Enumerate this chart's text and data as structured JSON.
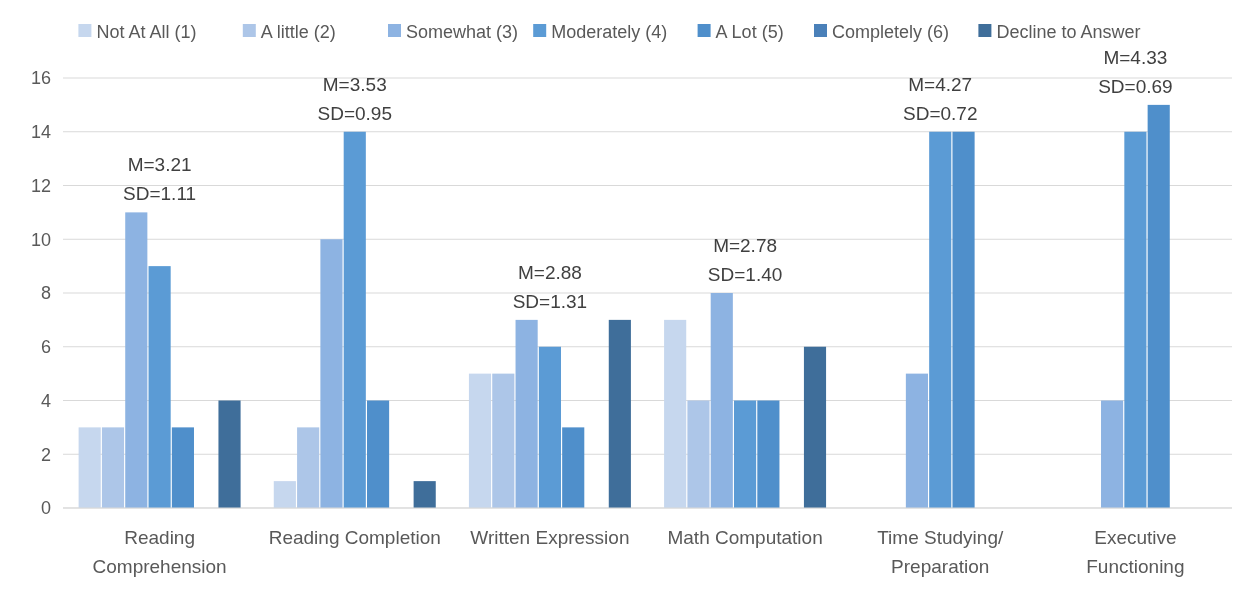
{
  "chart_data": {
    "type": "bar",
    "categories": [
      "Reading Comprehension",
      "Reading Completion",
      "Written Expression",
      "Math Computation",
      "Time Studying/ Preparation",
      "Executive Functioning"
    ],
    "series": [
      {
        "name": "Not At All (1)",
        "color": "#c6d7ee",
        "values": [
          3,
          1,
          5,
          7,
          0,
          0
        ]
      },
      {
        "name": "A little (2)",
        "color": "#adc6e8",
        "values": [
          3,
          3,
          5,
          4,
          0,
          0
        ]
      },
      {
        "name": "Somewhat (3)",
        "color": "#8db3e2",
        "values": [
          11,
          10,
          7,
          8,
          5,
          4
        ]
      },
      {
        "name": "Moderately (4)",
        "color": "#5b9bd5",
        "values": [
          9,
          14,
          6,
          4,
          14,
          14
        ]
      },
      {
        "name": "A Lot (5)",
        "color": "#4f8fcb",
        "values": [
          3,
          4,
          3,
          4,
          14,
          15
        ]
      },
      {
        "name": "Completely (6)",
        "color": "#4a80b9",
        "values": [
          0,
          0,
          0,
          0,
          0,
          0
        ]
      },
      {
        "name": "Decline to Answer",
        "color": "#3f6e9a",
        "values": [
          4,
          1,
          7,
          6,
          0,
          0
        ]
      }
    ],
    "ylim": [
      0,
      16
    ],
    "yticks": [
      0,
      2,
      4,
      6,
      8,
      10,
      12,
      14,
      16
    ],
    "grid": "y",
    "legend": "top",
    "annotations": [
      "M=3.21\nSD=1.11",
      "M=3.53\nSD=0.95",
      "M=2.88\nSD=1.31",
      "M=2.78\nSD=1.40",
      "M=4.27\nSD=0.72",
      "M=4.33\nSD=0.69"
    ]
  }
}
